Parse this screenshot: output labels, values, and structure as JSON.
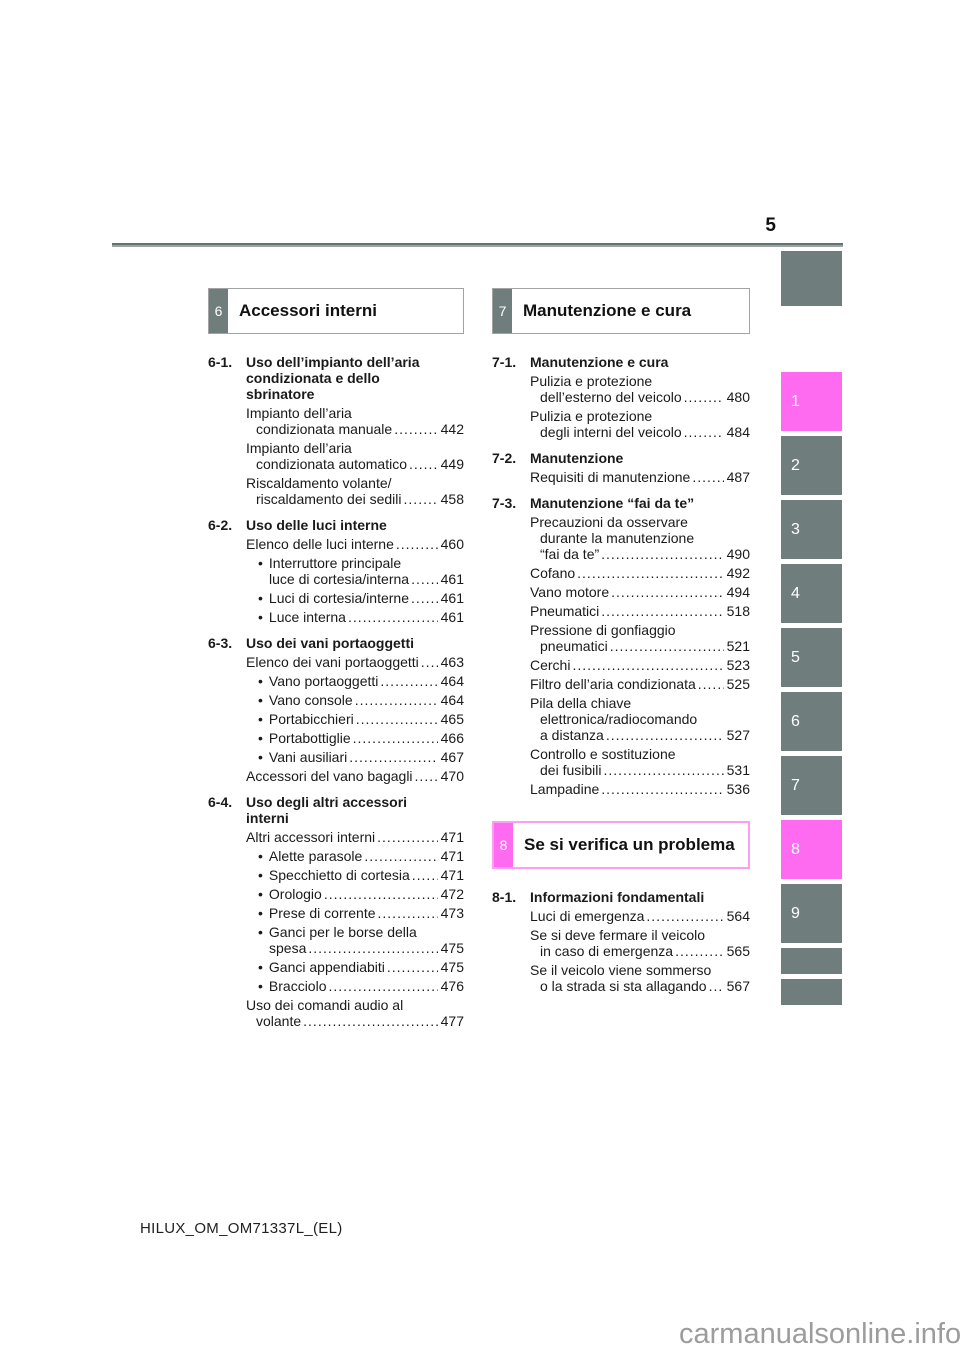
{
  "page": {
    "number": "5",
    "footer_code": "HILUX_OM_OM71337L_(EL)",
    "watermark": "carmanualsonline.info"
  },
  "colors": {
    "tab_gray": "#6f7d7d",
    "accent_pink": "#ff6bf0",
    "pink_box_border": "#ff9df2",
    "box_border": "#a3a3a3"
  },
  "layout": {
    "bullet": "•",
    "leader_dots": "........................................................................................................................"
  },
  "sidebar": {
    "tabs": [
      {
        "label": "1",
        "active": true,
        "small": false
      },
      {
        "label": "2",
        "active": false,
        "small": false
      },
      {
        "label": "3",
        "active": false,
        "small": false
      },
      {
        "label": "4",
        "active": false,
        "small": false
      },
      {
        "label": "5",
        "active": false,
        "small": false
      },
      {
        "label": "6",
        "active": false,
        "small": false
      },
      {
        "label": "7",
        "active": false,
        "small": false
      },
      {
        "label": "8",
        "active": true,
        "small": false
      },
      {
        "label": "9",
        "active": false,
        "small": false
      },
      {
        "label": "",
        "active": false,
        "small": true
      },
      {
        "label": "",
        "active": false,
        "small": true
      }
    ]
  },
  "columns": {
    "left": [
      {
        "header": {
          "num": "6",
          "title": "Accessori interni",
          "accent": "gray"
        },
        "sections": [
          {
            "num": "6-1.",
            "title_lines": [
              "Uso dell’impianto dell’aria",
              "condizionata e dello",
              "sbrinatore"
            ],
            "items": [
              {
                "bullet": false,
                "lines": [
                  "Impianto dell’aria",
                  "condizionata manuale"
                ],
                "page": "442"
              },
              {
                "bullet": false,
                "lines": [
                  "Impianto dell’aria",
                  "condizionata automatico"
                ],
                "page": "449"
              },
              {
                "bullet": false,
                "lines": [
                  "Riscaldamento volante/",
                  "riscaldamento dei sedili"
                ],
                "page": "458"
              }
            ]
          },
          {
            "num": "6-2.",
            "title_lines": [
              "Uso delle luci interne"
            ],
            "items": [
              {
                "bullet": false,
                "lines": [
                  "Elenco delle luci interne"
                ],
                "page": "460"
              },
              {
                "bullet": true,
                "lines": [
                  "Interruttore principale",
                  "luce di cortesia/interna"
                ],
                "page": "461"
              },
              {
                "bullet": true,
                "lines": [
                  "Luci di cortesia/interne"
                ],
                "page": "461"
              },
              {
                "bullet": true,
                "lines": [
                  "Luce interna"
                ],
                "page": "461"
              }
            ]
          },
          {
            "num": "6-3.",
            "title_lines": [
              "Uso dei vani portaoggetti"
            ],
            "items": [
              {
                "bullet": false,
                "lines": [
                  "Elenco dei vani portaoggetti"
                ],
                "page": "463"
              },
              {
                "bullet": true,
                "lines": [
                  "Vano portaoggetti"
                ],
                "page": "464"
              },
              {
                "bullet": true,
                "lines": [
                  "Vano console"
                ],
                "page": "464"
              },
              {
                "bullet": true,
                "lines": [
                  "Portabicchieri"
                ],
                "page": "465"
              },
              {
                "bullet": true,
                "lines": [
                  "Portabottiglie"
                ],
                "page": "466"
              },
              {
                "bullet": true,
                "lines": [
                  "Vani ausiliari"
                ],
                "page": "467"
              },
              {
                "bullet": false,
                "lines": [
                  "Accessori del vano bagagli"
                ],
                "page": "470"
              }
            ]
          },
          {
            "num": "6-4.",
            "title_lines": [
              "Uso degli altri accessori",
              "interni"
            ],
            "items": [
              {
                "bullet": false,
                "lines": [
                  "Altri accessori interni"
                ],
                "page": "471"
              },
              {
                "bullet": true,
                "lines": [
                  "Alette parasole"
                ],
                "page": "471"
              },
              {
                "bullet": true,
                "lines": [
                  "Specchietto di cortesia"
                ],
                "page": "471"
              },
              {
                "bullet": true,
                "lines": [
                  "Orologio"
                ],
                "page": "472"
              },
              {
                "bullet": true,
                "lines": [
                  "Prese di corrente"
                ],
                "page": "473"
              },
              {
                "bullet": true,
                "lines": [
                  "Ganci per le borse della",
                  "spesa"
                ],
                "page": "475"
              },
              {
                "bullet": true,
                "lines": [
                  "Ganci appendiabiti"
                ],
                "page": "475"
              },
              {
                "bullet": true,
                "lines": [
                  "Bracciolo"
                ],
                "page": "476"
              },
              {
                "bullet": false,
                "lines": [
                  "Uso dei comandi audio al",
                  "volante"
                ],
                "page": "477"
              }
            ]
          }
        ]
      }
    ],
    "right": [
      {
        "header": {
          "num": "7",
          "title": "Manutenzione e cura",
          "accent": "gray"
        },
        "sections": [
          {
            "num": "7-1.",
            "title_lines": [
              "Manutenzione e cura"
            ],
            "items": [
              {
                "bullet": false,
                "lines": [
                  "Pulizia e protezione",
                  "dell’esterno del veicolo"
                ],
                "page": "480"
              },
              {
                "bullet": false,
                "lines": [
                  "Pulizia e protezione",
                  "degli interni del veicolo"
                ],
                "page": "484"
              }
            ]
          },
          {
            "num": "7-2.",
            "title_lines": [
              "Manutenzione"
            ],
            "items": [
              {
                "bullet": false,
                "lines": [
                  "Requisiti di manutenzione"
                ],
                "page": "487"
              }
            ]
          },
          {
            "num": "7-3.",
            "title_lines": [
              "Manutenzione “fai da te”"
            ],
            "items": [
              {
                "bullet": false,
                "lines": [
                  "Precauzioni da osservare",
                  "durante la manutenzione",
                  "“fai da te”"
                ],
                "page": "490"
              },
              {
                "bullet": false,
                "lines": [
                  "Cofano"
                ],
                "page": "492"
              },
              {
                "bullet": false,
                "lines": [
                  "Vano motore"
                ],
                "page": "494"
              },
              {
                "bullet": false,
                "lines": [
                  "Pneumatici"
                ],
                "page": "518"
              },
              {
                "bullet": false,
                "lines": [
                  "Pressione di gonfiaggio",
                  "pneumatici"
                ],
                "page": "521"
              },
              {
                "bullet": false,
                "lines": [
                  "Cerchi"
                ],
                "page": "523"
              },
              {
                "bullet": false,
                "lines": [
                  "Filtro dell’aria condizionata"
                ],
                "page": "525"
              },
              {
                "bullet": false,
                "lines": [
                  "Pila della chiave",
                  "elettronica/radiocomando",
                  "a distanza"
                ],
                "page": "527"
              },
              {
                "bullet": false,
                "lines": [
                  "Controllo e sostituzione",
                  "dei fusibili"
                ],
                "page": "531"
              },
              {
                "bullet": false,
                "lines": [
                  "Lampadine"
                ],
                "page": "536"
              }
            ]
          }
        ]
      },
      {
        "header": {
          "num": "8",
          "title": "Se si verifica un problema",
          "accent": "pink"
        },
        "sections": [
          {
            "num": "8-1.",
            "title_lines": [
              "Informazioni fondamentali"
            ],
            "items": [
              {
                "bullet": false,
                "lines": [
                  "Luci di emergenza"
                ],
                "page": "564"
              },
              {
                "bullet": false,
                "lines": [
                  "Se si deve fermare il veicolo",
                  "in caso di emergenza"
                ],
                "page": "565"
              },
              {
                "bullet": false,
                "lines": [
                  "Se il veicolo viene sommerso",
                  "o la strada si sta allagando"
                ],
                "page": "567"
              }
            ]
          }
        ]
      }
    ]
  }
}
